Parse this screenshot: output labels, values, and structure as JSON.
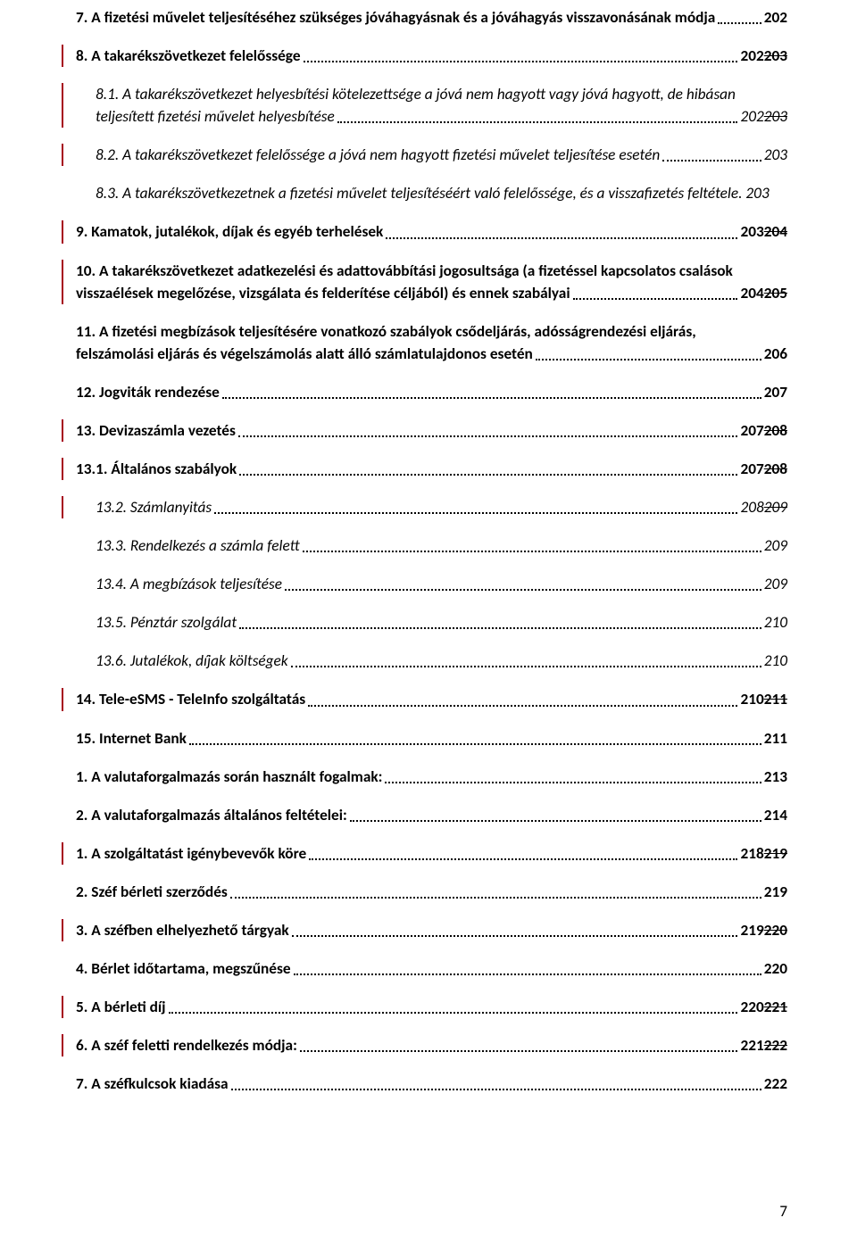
{
  "toc": [
    {
      "type": "single",
      "bold": true,
      "bar": false,
      "indent": 0,
      "italic": false,
      "title": "7. A fizetési művelet teljesítéséhez szükséges jóváhagyásnak és a jóváhagyás visszavonásának módja",
      "page": "202",
      "strike": ""
    },
    {
      "type": "single",
      "bold": true,
      "bar": true,
      "indent": 0,
      "italic": false,
      "title": "8. A takarékszövetkezet felelőssége",
      "page": "202",
      "strike": "203"
    },
    {
      "type": "multi",
      "bold": false,
      "bar": true,
      "indent": 1,
      "italic": true,
      "line1": "8.1. A takarékszövetkezet helyesbítési kötelezettsége a jóvá nem hagyott vagy jóvá hagyott, de hibásan",
      "tail": "teljesített fizetési művelet helyesbítése",
      "page": "202",
      "strike": "203"
    },
    {
      "type": "single",
      "bold": false,
      "bar": true,
      "indent": 1,
      "italic": true,
      "title": "8.2. A takarékszövetkezet felelőssége a jóvá nem hagyott fizetési művelet teljesítése esetén",
      "page": "203",
      "strike": ""
    },
    {
      "type": "single",
      "bold": false,
      "bar": false,
      "indent": 1,
      "italic": true,
      "title": "8.3. A takarékszövetkezetnek a fizetési művelet teljesítéséért való felelőssége, és a visszafizetés feltétele",
      "page": ". 203",
      "strike": "",
      "noleader": true
    },
    {
      "type": "single",
      "bold": true,
      "bar": true,
      "indent": 0,
      "italic": false,
      "title": "9. Kamatok, jutalékok, díjak és egyéb terhelések",
      "page": "203",
      "strike": "204"
    },
    {
      "type": "multi",
      "bold": true,
      "bar": true,
      "indent": 0,
      "italic": false,
      "line1": "10. A takarékszövetkezet adatkezelési és adattovábbítási jogosultsága (a fizetéssel kapcsolatos csalások",
      "tail": "visszaélések megelőzése, vizsgálata és felderítése céljából) és ennek szabályai",
      "page": "204",
      "strike": "205"
    },
    {
      "type": "multi",
      "bold": true,
      "bar": false,
      "indent": 0,
      "italic": false,
      "line1": "11. A fizetési megbízások teljesítésére vonatkozó szabályok csődeljárás, adósságrendezési eljárás,",
      "tail": "felszámolási eljárás és végelszámolás alatt álló számlatulajdonos esetén",
      "page": "206",
      "strike": ""
    },
    {
      "type": "single",
      "bold": true,
      "bar": false,
      "indent": 0,
      "italic": false,
      "title": "12. Jogviták rendezése",
      "page": "207",
      "strike": ""
    },
    {
      "type": "single",
      "bold": true,
      "bar": true,
      "indent": 0,
      "italic": false,
      "title": "13. Devizaszámla vezetés",
      "page": "207",
      "strike": "208"
    },
    {
      "type": "single",
      "bold": true,
      "bar": true,
      "indent": 0,
      "italic": false,
      "title": "13.1. Általános szabályok",
      "page": "207",
      "strike": "208"
    },
    {
      "type": "single",
      "bold": false,
      "bar": true,
      "indent": 1,
      "italic": true,
      "title": "13.2. Számlanyitás",
      "page": "208",
      "strike": "209"
    },
    {
      "type": "single",
      "bold": false,
      "bar": false,
      "indent": 1,
      "italic": true,
      "title": "13.3. Rendelkezés a számla felett",
      "page": "209",
      "strike": ""
    },
    {
      "type": "single",
      "bold": false,
      "bar": false,
      "indent": 1,
      "italic": true,
      "title": "13.4. A megbízások teljesítése",
      "page": "209",
      "strike": ""
    },
    {
      "type": "single",
      "bold": false,
      "bar": false,
      "indent": 1,
      "italic": true,
      "title": "13.5. Pénztár szolgálat",
      "page": "210",
      "strike": ""
    },
    {
      "type": "single",
      "bold": false,
      "bar": false,
      "indent": 1,
      "italic": true,
      "title": "13.6. Jutalékok, díjak költségek",
      "page": "210",
      "strike": ""
    },
    {
      "type": "single",
      "bold": true,
      "bar": true,
      "indent": 0,
      "italic": false,
      "title": "14. Tele-eSMS  - TeleInfo szolgáltatás",
      "page": "210",
      "strike": "211"
    },
    {
      "type": "single",
      "bold": true,
      "bar": false,
      "indent": 0,
      "italic": false,
      "title": "15. Internet Bank",
      "page": "211",
      "strike": ""
    },
    {
      "type": "single",
      "bold": true,
      "bar": false,
      "indent": 0,
      "italic": false,
      "title": "1. A valutaforgalmazás során használt fogalmak:",
      "page": "213",
      "strike": ""
    },
    {
      "type": "single",
      "bold": true,
      "bar": false,
      "indent": 0,
      "italic": false,
      "title": "2.  A valutaforgalmazás általános feltételei:",
      "page": "214",
      "strike": ""
    },
    {
      "type": "single",
      "bold": true,
      "bar": true,
      "indent": 0,
      "italic": false,
      "title": "1. A szolgáltatást igénybevevők köre",
      "page": "218",
      "strike": "219"
    },
    {
      "type": "single",
      "bold": true,
      "bar": false,
      "indent": 0,
      "italic": false,
      "title": "2. Széf bérleti szerződés",
      "page": "219",
      "strike": ""
    },
    {
      "type": "single",
      "bold": true,
      "bar": true,
      "indent": 0,
      "italic": false,
      "title": "3. A széfben elhelyezhető tárgyak",
      "page": "219",
      "strike": "220"
    },
    {
      "type": "single",
      "bold": true,
      "bar": false,
      "indent": 0,
      "italic": false,
      "title": "4. Bérlet időtartama, megszűnése",
      "page": "220",
      "strike": ""
    },
    {
      "type": "single",
      "bold": true,
      "bar": true,
      "indent": 0,
      "italic": false,
      "title": "5. A bérleti díj",
      "page": "220",
      "strike": "221"
    },
    {
      "type": "single",
      "bold": true,
      "bar": true,
      "indent": 0,
      "italic": false,
      "title": "6. A széf feletti rendelkezés módja:",
      "page": "221",
      "strike": "222"
    },
    {
      "type": "single",
      "bold": true,
      "bar": false,
      "indent": 0,
      "italic": false,
      "title": "7.  A széfkulcsok kiadása",
      "page": "222",
      "strike": ""
    }
  ],
  "pageNumber": "7"
}
